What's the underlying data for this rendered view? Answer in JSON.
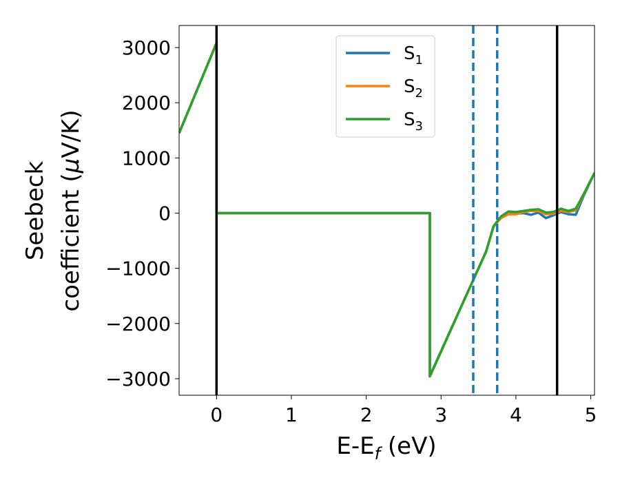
{
  "chart_data": {
    "type": "line",
    "xlabel_main": "E-E",
    "xlabel_sub": "f",
    "xlabel_tail": " (eV)",
    "ylabel_line1": "Seebeck",
    "ylabel_line2_pre": "coefficient  (",
    "ylabel_line2_mu": "μ",
    "ylabel_line2_post": "V/K)",
    "xlim": [
      -0.5,
      5.05
    ],
    "ylim": [
      -3300,
      3400
    ],
    "xticks": [
      0,
      1,
      2,
      3,
      4,
      5
    ],
    "xtick_labels": [
      "0",
      "1",
      "2",
      "3",
      "4",
      "5"
    ],
    "yticks": [
      -3000,
      -2000,
      -1000,
      0,
      1000,
      2000,
      3000
    ],
    "ytick_labels": [
      "−3000",
      "−2000",
      "−1000",
      "0",
      "1000",
      "2000",
      "3000"
    ],
    "grid": false,
    "legend_position": "top-center",
    "series": [
      {
        "name": "S",
        "sub": "1",
        "color": "#1f77b4",
        "x": [
          -0.5,
          0.0,
          0.0,
          2.85,
          2.85,
          3.3,
          3.6,
          3.7,
          3.8,
          3.9,
          4.0,
          4.1,
          4.2,
          4.3,
          4.4,
          4.5,
          4.6,
          4.7,
          4.8,
          4.9,
          5.05
        ],
        "y": [
          1450,
          3080,
          0,
          0,
          -2950,
          -1600,
          -700,
          -250,
          -80,
          -20,
          -10,
          0,
          -30,
          10,
          -90,
          -40,
          20,
          -20,
          -30,
          300,
          730
        ]
      },
      {
        "name": "S",
        "sub": "2",
        "color": "#ff7f0e",
        "x": [
          -0.5,
          0.0,
          0.0,
          2.85,
          2.85,
          3.3,
          3.6,
          3.7,
          3.8,
          3.9,
          4.0,
          4.1,
          4.2,
          4.3,
          4.4,
          4.5,
          4.6,
          4.7,
          4.8,
          4.9,
          5.05
        ],
        "y": [
          1450,
          3080,
          0,
          0,
          -2960,
          -1600,
          -700,
          -250,
          -90,
          -20,
          -20,
          20,
          40,
          40,
          -20,
          -10,
          40,
          20,
          50,
          320,
          730
        ]
      },
      {
        "name": "S",
        "sub": "3",
        "color": "#2ca02c",
        "x": [
          -0.5,
          0.0,
          0.0,
          2.85,
          2.85,
          3.3,
          3.6,
          3.7,
          3.8,
          3.9,
          4.0,
          4.1,
          4.2,
          4.3,
          4.4,
          4.5,
          4.6,
          4.7,
          4.8,
          4.9,
          5.05
        ],
        "y": [
          1450,
          3080,
          0,
          0,
          -2960,
          -1600,
          -700,
          -240,
          -60,
          30,
          20,
          40,
          60,
          70,
          10,
          20,
          80,
          40,
          80,
          330,
          730
        ]
      }
    ],
    "vlines_solid": [
      0.0,
      4.55
    ],
    "vlines_dashed": [
      3.43,
      3.75
    ],
    "vline_solid_color": "#000000",
    "vline_dashed_color": "#1f77b4"
  }
}
